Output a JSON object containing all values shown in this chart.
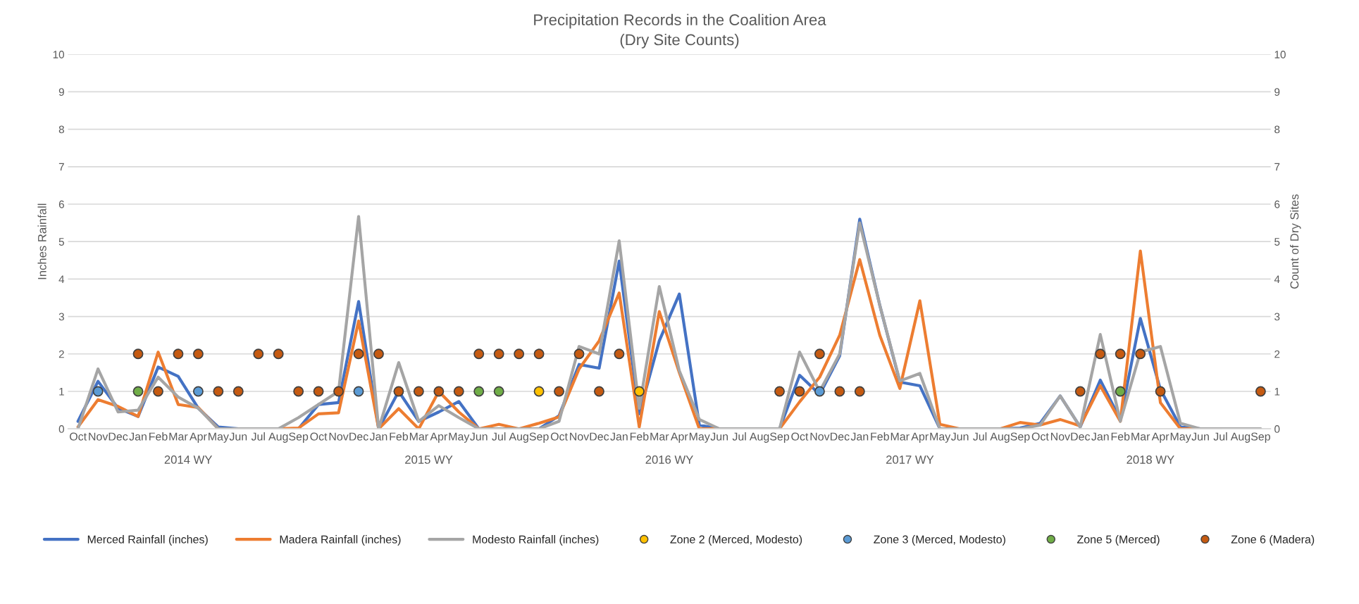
{
  "chart_data": {
    "type": "line",
    "title": "Precipitation Records in the Coalition Area",
    "subtitle": "(Dry Site Counts)",
    "ylabel": "Inches Rainfall",
    "y2label": "Count of Dry Sites",
    "categories": [
      "Oct",
      "Nov",
      "Dec",
      "Jan",
      "Feb",
      "Mar",
      "Apr",
      "May",
      "Jun",
      "Jul",
      "Aug",
      "Sep",
      "Oct",
      "Nov",
      "Dec",
      "Jan",
      "Feb",
      "Mar",
      "Apr",
      "May",
      "Jun",
      "Jul",
      "Aug",
      "Sep",
      "Oct",
      "Nov",
      "Dec",
      "Jan",
      "Feb",
      "Mar",
      "Apr",
      "May",
      "Jun",
      "Jul",
      "Aug",
      "Sep",
      "Oct",
      "Nov",
      "Dec",
      "Jan",
      "Feb",
      "Mar",
      "Apr",
      "May",
      "Jun",
      "Jul",
      "Aug",
      "Sep",
      "Oct",
      "Nov",
      "Dec",
      "Jan",
      "Feb",
      "Mar",
      "Apr",
      "May",
      "Jun",
      "Jul",
      "Aug",
      "Sep"
    ],
    "annotations": [
      "2014 WY",
      "2015 WY",
      "2016 WY",
      "2017 WY",
      "2018 WY"
    ],
    "ylim": [
      0,
      10
    ],
    "yticks": [
      0,
      1,
      2,
      3,
      4,
      5,
      6,
      7,
      8,
      9,
      10
    ],
    "y2lim": [
      0,
      10
    ],
    "y2ticks": [
      0,
      1,
      2,
      3,
      4,
      5,
      6,
      7,
      8,
      9,
      10
    ],
    "grid": "y",
    "legend": "bottom",
    "line_style": "solid",
    "series": [
      {
        "name": "Merced Rainfall (inches)",
        "marker": "none",
        "color": "#4472c4",
        "values": [
          0.2,
          1.27,
          0.55,
          0.33,
          1.65,
          1.4,
          0.55,
          0.05,
          0,
          0,
          0,
          0,
          0.65,
          0.7,
          3.4,
          0,
          1.0,
          0.2,
          0.45,
          0.73,
          0,
          0,
          0,
          0,
          0.35,
          1.72,
          1.62,
          4.48,
          0.4,
          2.35,
          3.6,
          0.1,
          0,
          0,
          0,
          0,
          1.43,
          0.92,
          1.95,
          5.6,
          3.3,
          1.25,
          1.15,
          0,
          0,
          0,
          0,
          0.02,
          0.15,
          0.88,
          0.05,
          1.3,
          0.25,
          2.95,
          1.05,
          0.05,
          0,
          0,
          null,
          null
        ]
      },
      {
        "name": "Madera Rainfall (inches)",
        "marker": "none",
        "color": "#ed7d31",
        "values": [
          0.05,
          0.78,
          0.6,
          0.33,
          2.05,
          0.65,
          0.57,
          0,
          0,
          0,
          0,
          0.02,
          0.4,
          0.43,
          2.88,
          0,
          0.54,
          0,
          1.0,
          0.45,
          0,
          0.12,
          0,
          0.15,
          0.32,
          1.6,
          2.35,
          3.63,
          0.05,
          3.13,
          1.5,
          0,
          0,
          0,
          0,
          0,
          0.72,
          1.38,
          2.5,
          4.52,
          2.5,
          1.08,
          3.42,
          0.12,
          0,
          0,
          0,
          0.17,
          0.1,
          0.25,
          0.08,
          1.15,
          0.2,
          4.75,
          0.7,
          0,
          0,
          0,
          null,
          null
        ]
      },
      {
        "name": "Modesto Rainfall (inches)",
        "marker": "none",
        "color": "#a5a5a5",
        "values": [
          0,
          1.6,
          0.45,
          0.5,
          1.38,
          0.85,
          0.55,
          0,
          0,
          0,
          0,
          0.3,
          0.65,
          1.0,
          5.67,
          0,
          1.77,
          0.2,
          0.62,
          0.3,
          0,
          0,
          0,
          0,
          0.2,
          2.2,
          2.0,
          5.02,
          0.55,
          3.8,
          1.55,
          0.25,
          0,
          0,
          0,
          0,
          2.05,
          1.0,
          2.0,
          5.5,
          3.3,
          1.28,
          1.48,
          0,
          0,
          0,
          0,
          0,
          0.1,
          0.88,
          0.05,
          2.52,
          0.2,
          2.05,
          2.2,
          0.15,
          0,
          0,
          0,
          0
        ]
      },
      {
        "name": "Zone 2 (Merced, Modesto)",
        "type": "scatter",
        "marker": "circle",
        "axis": "y2",
        "color": "#ffc000",
        "values": [
          null,
          null,
          null,
          null,
          null,
          null,
          null,
          null,
          null,
          null,
          null,
          null,
          null,
          null,
          null,
          null,
          null,
          null,
          null,
          null,
          null,
          null,
          null,
          1,
          null,
          null,
          null,
          null,
          1,
          null,
          null,
          null,
          null,
          null,
          null,
          null,
          null,
          null,
          null,
          null,
          null,
          null,
          null,
          null,
          null,
          null,
          null,
          null,
          null,
          null,
          null,
          null,
          null,
          null,
          null,
          null,
          null,
          null,
          null,
          null
        ]
      },
      {
        "name": "Zone 3 (Merced, Modesto)",
        "type": "scatter",
        "marker": "circle",
        "axis": "y2",
        "color": "#5b9bd5",
        "values": [
          null,
          1,
          null,
          null,
          null,
          null,
          1,
          null,
          null,
          null,
          null,
          null,
          null,
          null,
          1,
          null,
          null,
          null,
          null,
          null,
          null,
          null,
          null,
          null,
          null,
          null,
          null,
          null,
          null,
          null,
          null,
          null,
          null,
          null,
          null,
          null,
          null,
          1,
          null,
          null,
          null,
          null,
          null,
          null,
          null,
          null,
          null,
          null,
          null,
          null,
          null,
          null,
          null,
          null,
          null,
          null,
          null,
          null,
          null,
          null
        ]
      },
      {
        "name": "Zone 5 (Merced)",
        "type": "scatter",
        "marker": "circle",
        "axis": "y2",
        "color": "#70ad47",
        "values": [
          null,
          null,
          null,
          1,
          null,
          null,
          null,
          null,
          null,
          null,
          null,
          null,
          null,
          null,
          null,
          null,
          null,
          null,
          null,
          null,
          1,
          1,
          null,
          null,
          null,
          null,
          null,
          null,
          null,
          null,
          null,
          null,
          null,
          null,
          null,
          null,
          null,
          null,
          null,
          null,
          null,
          null,
          null,
          null,
          null,
          null,
          null,
          null,
          null,
          null,
          null,
          null,
          1,
          null,
          null,
          null,
          null,
          null,
          null,
          null
        ]
      },
      {
        "name": "Zone 6 (Madera)",
        "type": "scatter",
        "marker": "circle",
        "axis": "y2",
        "color": "#c55a11",
        "values": [
          null,
          null,
          null,
          2,
          1,
          2,
          2,
          1,
          1,
          2,
          2,
          1,
          1,
          1,
          2,
          2,
          1,
          1,
          1,
          1,
          2,
          2,
          2,
          2,
          1,
          2,
          1,
          2,
          null,
          null,
          null,
          null,
          null,
          null,
          null,
          1,
          1,
          2,
          1,
          1,
          null,
          null,
          null,
          null,
          null,
          null,
          null,
          null,
          null,
          null,
          1,
          2,
          2,
          2,
          1,
          null,
          null,
          null,
          null,
          1
        ]
      }
    ]
  }
}
